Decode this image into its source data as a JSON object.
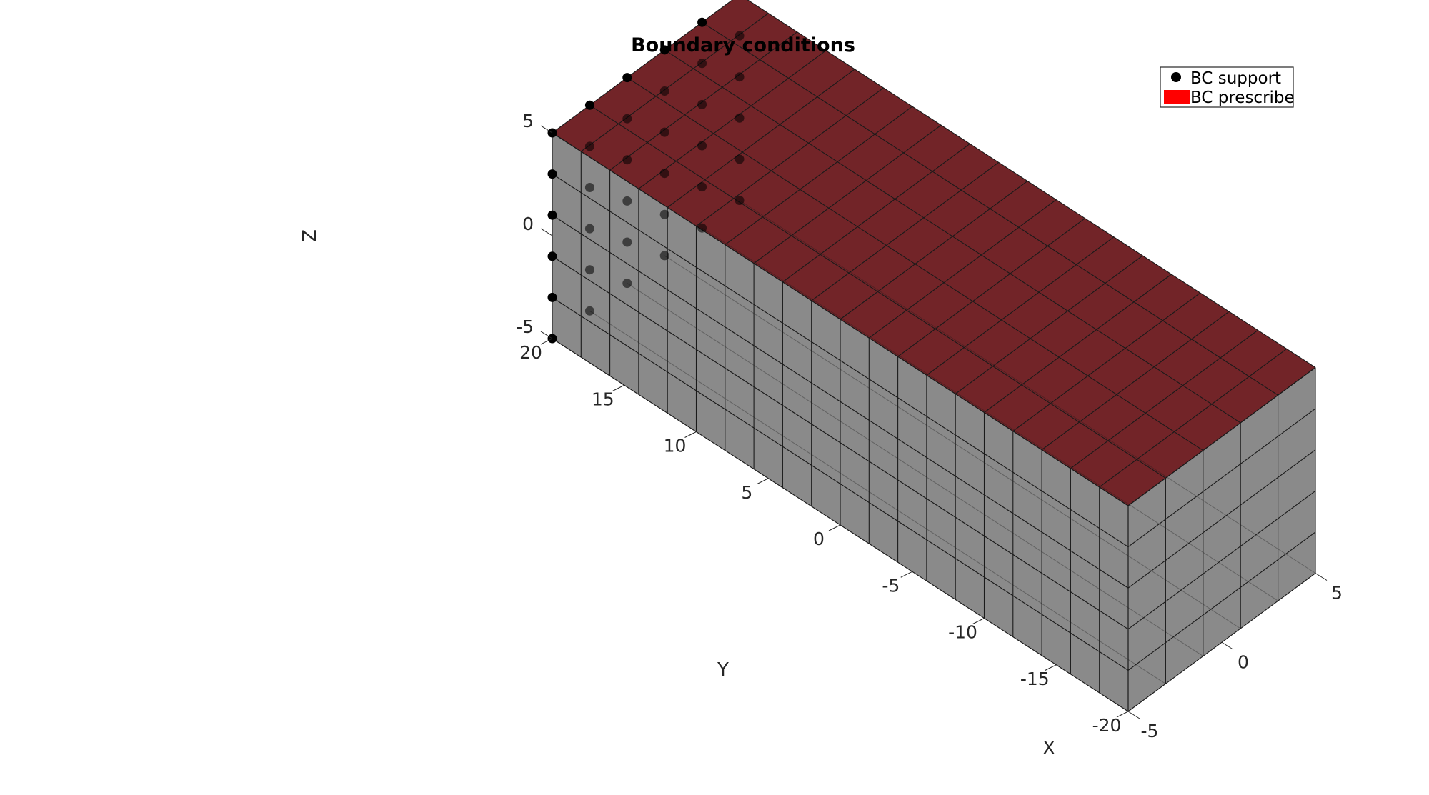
{
  "figure": {
    "title": "Boundary conditions"
  },
  "chart_data": {
    "type": "mesh3d",
    "title": "Boundary conditions",
    "xlabel": "X",
    "ylabel": "Y",
    "zlabel": "Z",
    "xlim": [
      -5,
      5
    ],
    "ylim": [
      -20,
      20
    ],
    "zlim": [
      -5,
      5
    ],
    "x_ticks": [
      "-5",
      "0",
      "5"
    ],
    "y_ticks": [
      "-20",
      "-15",
      "-10",
      "-5",
      "0",
      "5",
      "10",
      "15",
      "20"
    ],
    "z_ticks": [
      "-5",
      "0",
      "5"
    ],
    "mesh": {
      "x_divisions": 5,
      "y_divisions": 20,
      "z_divisions": 5,
      "face_color": "#808080",
      "edge_color": "#1a1a1a"
    },
    "legend": {
      "placement": "top-right",
      "entries": [
        {
          "label": "BC support",
          "marker": "dot",
          "color": "#000000"
        },
        {
          "label": "BC prescribe",
          "marker": "patch",
          "color": "#ff0000"
        }
      ]
    },
    "bc_support": {
      "location": "y = 20 face",
      "color": "#000000"
    },
    "bc_prescribe": {
      "location": "z = 5 face",
      "color": "#722428"
    }
  }
}
